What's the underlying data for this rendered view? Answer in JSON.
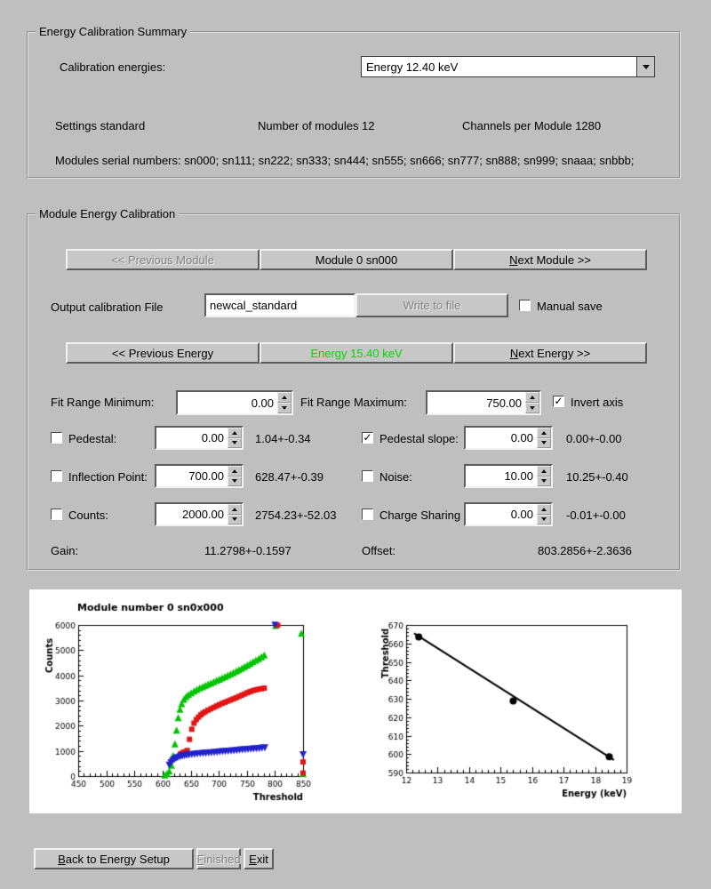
{
  "colors": {
    "background": "#bfbfbf",
    "energy_active": "#00d800",
    "series_green": "#00c400",
    "series_red": "#e21414",
    "series_blue": "#2121cc"
  },
  "summary": {
    "title": "Energy Calibration Summary",
    "calibration_energies_label": "Calibration energies:",
    "energy_select_value": "Energy 12.40 keV",
    "settings": "Settings standard",
    "modules_count": "Number of modules 12",
    "channels_per_module": "Channels per Module 1280",
    "serial_numbers": "Modules serial numbers: sn000; sn111; sn222; sn333; sn444; sn555; sn666; sn777; sn888; sn999; snaaa; snbbb;"
  },
  "module_calibration": {
    "title": "Module Energy Calibration",
    "prev_module_button": "<< Previous Module",
    "module_label": "Module 0 sn000",
    "next_module_button": "Next Module >>",
    "output_file_label": "Output calibration File",
    "output_file_value": "newcal_standard",
    "write_to_file_button": "Write to file",
    "manual_save_label": "Manual save",
    "manual_save_checked": false,
    "prev_energy_button": "<< Previous Energy",
    "current_energy_label": "Energy 15.40 keV",
    "next_energy_button": "Next Energy >>",
    "fit_range_min_label": "Fit Range Minimum:",
    "fit_range_min_value": "0.00",
    "fit_range_max_label": "Fit Range Maximum:",
    "fit_range_max_value": "750.00",
    "invert_axis_label": "Invert axis",
    "invert_axis_checked": true,
    "left_params": [
      {
        "label": "Pedestal:",
        "checked": false,
        "value": "0.00",
        "result": "1.04+-0.34"
      },
      {
        "label": "Inflection Point:",
        "checked": false,
        "value": "700.00",
        "result": "628.47+-0.39"
      },
      {
        "label": "Counts:",
        "checked": false,
        "value": "2000.00",
        "result": "2754.23+-52.03"
      }
    ],
    "right_params": [
      {
        "label": "Pedestal slope:",
        "checked": true,
        "value": "0.00",
        "result": "0.00+-0.00"
      },
      {
        "label": "Noise:",
        "checked": false,
        "value": "10.00",
        "result": "10.25+-0.40"
      },
      {
        "label": "Charge Sharing",
        "checked": false,
        "value": "0.00",
        "result": "-0.01+-0.00"
      }
    ],
    "gain_label": "Gain:",
    "gain_value": "11.2798+-0.1597",
    "offset_label": "Offset:",
    "offset_value": "803.2856+-2.3636"
  },
  "footer": {
    "back_button": "Back to Energy Setup",
    "finished_button": "Finished",
    "exit_button": "Exit"
  },
  "chart_data": [
    {
      "type": "scatter",
      "title": "Module number 0 sn0x000",
      "xlabel": "Threshold",
      "ylabel": "Counts",
      "xlim": [
        450,
        850
      ],
      "ylim": [
        0,
        6000
      ],
      "xticks": [
        450,
        500,
        550,
        600,
        650,
        700,
        750,
        800,
        850
      ],
      "yticks": [
        0,
        1000,
        2000,
        3000,
        4000,
        5000,
        6000
      ],
      "series": [
        {
          "name": "scurve-green",
          "marker": "triangle-up",
          "color": "#00c400",
          "size": 4,
          "points": [
            [
              604,
              40
            ],
            [
              608,
              100
            ],
            [
              612,
              200
            ],
            [
              616,
              430
            ],
            [
              619,
              820
            ],
            [
              622,
              1280
            ],
            [
              625,
              1830
            ],
            [
              628,
              2320
            ],
            [
              631,
              2660
            ],
            [
              634,
              2880
            ],
            [
              638,
              3050
            ],
            [
              642,
              3160
            ],
            [
              646,
              3240
            ],
            [
              651,
              3310
            ],
            [
              656,
              3380
            ],
            [
              661,
              3440
            ],
            [
              666,
              3500
            ],
            [
              671,
              3550
            ],
            [
              676,
              3600
            ],
            [
              681,
              3650
            ],
            [
              686,
              3700
            ],
            [
              691,
              3750
            ],
            [
              696,
              3800
            ],
            [
              701,
              3850
            ],
            [
              706,
              3900
            ],
            [
              711,
              3950
            ],
            [
              716,
              4005
            ],
            [
              721,
              4060
            ],
            [
              726,
              4115
            ],
            [
              731,
              4170
            ],
            [
              736,
              4230
            ],
            [
              741,
              4290
            ],
            [
              746,
              4350
            ],
            [
              751,
              4415
            ],
            [
              756,
              4475
            ],
            [
              761,
              4540
            ],
            [
              766,
              4605
            ],
            [
              771,
              4670
            ],
            [
              776,
              4740
            ],
            [
              781,
              4810
            ],
            [
              801,
              5980
            ],
            [
              847,
              5670
            ],
            [
              850,
              100
            ]
          ]
        },
        {
          "name": "scurve-red",
          "marker": "square",
          "color": "#e21414",
          "size": 3,
          "points": [
            [
              632,
              880
            ],
            [
              636,
              935
            ],
            [
              640,
              965
            ],
            [
              644,
              1015
            ],
            [
              648,
              1460
            ],
            [
              652,
              1860
            ],
            [
              656,
              2100
            ],
            [
              660,
              2240
            ],
            [
              664,
              2340
            ],
            [
              668,
              2430
            ],
            [
              672,
              2500
            ],
            [
              676,
              2555
            ],
            [
              681,
              2615
            ],
            [
              686,
              2670
            ],
            [
              691,
              2725
            ],
            [
              696,
              2780
            ],
            [
              701,
              2835
            ],
            [
              706,
              2885
            ],
            [
              711,
              2930
            ],
            [
              716,
              2975
            ],
            [
              721,
              3020
            ],
            [
              726,
              3065
            ],
            [
              731,
              3110
            ],
            [
              736,
              3160
            ],
            [
              741,
              3210
            ],
            [
              746,
              3260
            ],
            [
              751,
              3310
            ],
            [
              756,
              3355
            ],
            [
              761,
              3395
            ],
            [
              766,
              3425
            ],
            [
              771,
              3450
            ],
            [
              776,
              3470
            ],
            [
              781,
              3490
            ],
            [
              805,
              5990
            ],
            [
              850,
              560
            ],
            [
              850,
              120
            ]
          ]
        },
        {
          "name": "scurve-blue",
          "marker": "triangle-down",
          "color": "#2121cc",
          "size": 4,
          "points": [
            [
              612,
              430
            ],
            [
              615,
              530
            ],
            [
              618,
              610
            ],
            [
              621,
              665
            ],
            [
              624,
              705
            ],
            [
              627,
              735
            ],
            [
              631,
              765
            ],
            [
              635,
              790
            ],
            [
              639,
              810
            ],
            [
              643,
              828
            ],
            [
              647,
              842
            ],
            [
              652,
              856
            ],
            [
              657,
              868
            ],
            [
              662,
              878
            ],
            [
              667,
              888
            ],
            [
              672,
              898
            ],
            [
              677,
              908
            ],
            [
              682,
              918
            ],
            [
              687,
              928
            ],
            [
              692,
              938
            ],
            [
              697,
              948
            ],
            [
              702,
              958
            ],
            [
              707,
              968
            ],
            [
              712,
              978
            ],
            [
              717,
              988
            ],
            [
              722,
              998
            ],
            [
              727,
              1008
            ],
            [
              732,
              1018
            ],
            [
              737,
              1028
            ],
            [
              742,
              1038
            ],
            [
              747,
              1048
            ],
            [
              752,
              1058
            ],
            [
              757,
              1068
            ],
            [
              762,
              1078
            ],
            [
              767,
              1088
            ],
            [
              772,
              1098
            ],
            [
              777,
              1108
            ],
            [
              782,
              1118
            ],
            [
              800,
              5990
            ],
            [
              850,
              845
            ]
          ]
        }
      ]
    },
    {
      "type": "line",
      "title": "",
      "xlabel": "Energy (keV)",
      "ylabel": "Threshold",
      "xlim": [
        12,
        19
      ],
      "ylim": [
        590,
        670
      ],
      "xticks": [
        12,
        13,
        14,
        15,
        16,
        17,
        18,
        19
      ],
      "yticks": [
        590,
        600,
        610,
        620,
        630,
        640,
        650,
        660,
        670
      ],
      "series": [
        {
          "name": "threshold-vs-energy",
          "marker": "circle",
          "color": "#000000",
          "size": 4,
          "points": [
            [
              12.4,
              663.5
            ],
            [
              15.4,
              628.8
            ],
            [
              18.45,
              598.5
            ]
          ]
        }
      ],
      "fit_line": {
        "x1": 12.25,
        "y1": 665.5,
        "x2": 18.6,
        "y2": 596.8
      }
    }
  ]
}
